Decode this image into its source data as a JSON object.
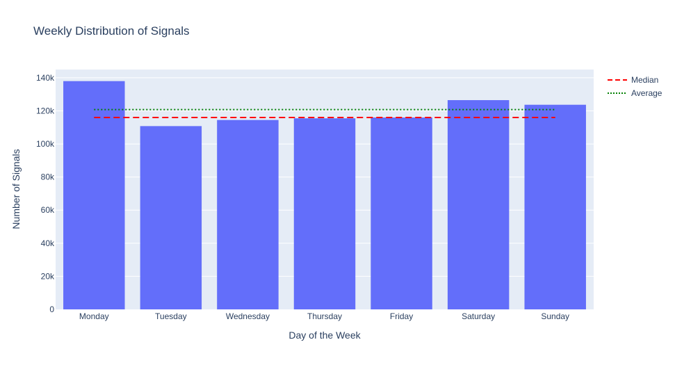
{
  "chart_data": {
    "type": "bar",
    "title": "Weekly Distribution of Signals",
    "xlabel": "Day of the Week",
    "ylabel": "Number of Signals",
    "categories": [
      "Monday",
      "Tuesday",
      "Wednesday",
      "Thursday",
      "Friday",
      "Saturday",
      "Sunday"
    ],
    "values": [
      138000,
      110800,
      114500,
      115500,
      116000,
      126500,
      123700
    ],
    "ylim": [
      0,
      145000
    ],
    "yticks": [
      {
        "value": 0,
        "label": "0"
      },
      {
        "value": 20000,
        "label": "20k"
      },
      {
        "value": 40000,
        "label": "40k"
      },
      {
        "value": 60000,
        "label": "60k"
      },
      {
        "value": 80000,
        "label": "80k"
      },
      {
        "value": 100000,
        "label": "100k"
      },
      {
        "value": 120000,
        "label": "120k"
      },
      {
        "value": 140000,
        "label": "140k"
      }
    ],
    "reference_lines": [
      {
        "name": "Median",
        "value": 116000,
        "color": "#ff0000",
        "style": "dash"
      },
      {
        "name": "Average",
        "value": 120800,
        "color": "#008000",
        "style": "dot"
      }
    ],
    "bar_color": "#636efa",
    "plot_background": "#e5ecf6",
    "grid": true,
    "legend_position": "top-right"
  }
}
